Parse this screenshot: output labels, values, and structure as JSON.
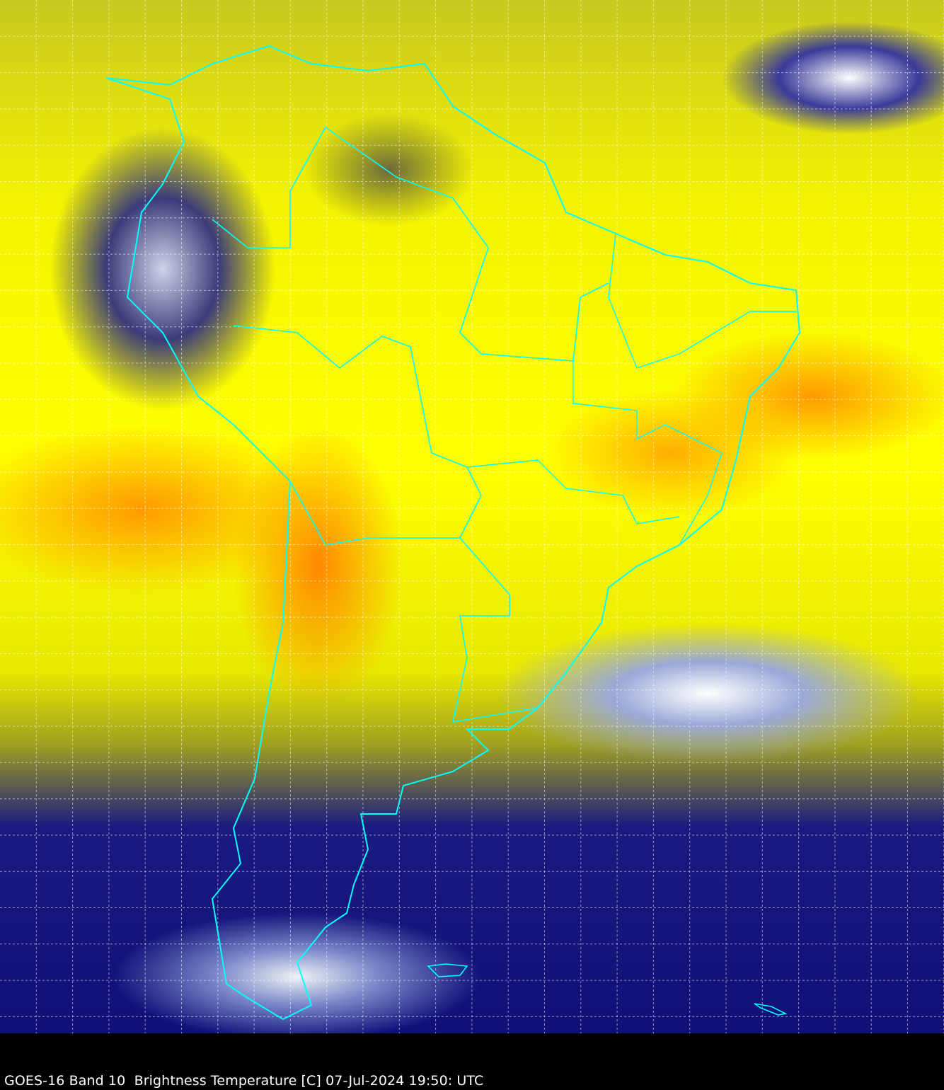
{
  "title": "GOES-16 Band 10  Brightness Temperature [C] 07-Jul-2024 19:50: UTC",
  "imagery": {
    "satellite": "GOES-16",
    "band": "Band 10",
    "product": "Brightness Temperature [C]",
    "date": "07-Jul-2024",
    "time": "19:50: UTC",
    "colors": {
      "coastline": "#00ffff",
      "grid": "#ffffff",
      "warm": "#ffff00",
      "warmest": "#ff9a00",
      "cold": "#101078",
      "coldest_clouds": "#ffffff",
      "background": "#000000"
    },
    "gridlines": "dashed"
  }
}
